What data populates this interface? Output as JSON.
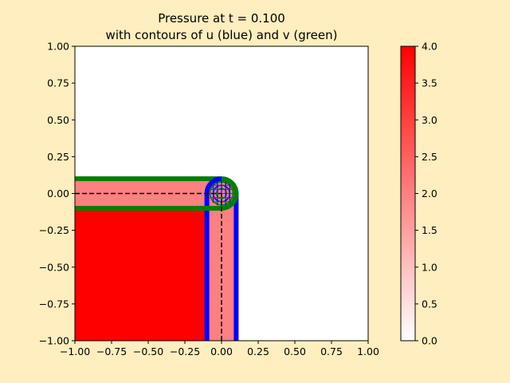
{
  "chart_data": {
    "type": "heatmap",
    "title_line1": "Pressure at t = 0.100",
    "title_line2": "with contours of u (blue) and v (green)",
    "xlabel": "",
    "ylabel": "",
    "xlim": [
      -1.0,
      1.0
    ],
    "ylim": [
      -1.0,
      1.0
    ],
    "x_ticks": [
      -1.0,
      -0.75,
      -0.5,
      -0.25,
      0.0,
      0.25,
      0.5,
      0.75,
      1.0
    ],
    "x_tick_labels": [
      "−1.00",
      "−0.75",
      "−0.50",
      "−0.25",
      "0.00",
      "0.25",
      "0.50",
      "0.75",
      "1.00"
    ],
    "y_ticks": [
      1.0,
      0.75,
      0.5,
      0.25,
      0.0,
      -0.25,
      -0.5,
      -0.75,
      -1.0
    ],
    "y_tick_labels": [
      "1.00",
      "0.75",
      "0.50",
      "0.25",
      "0.00",
      "−0.25",
      "−0.50",
      "−0.75",
      "−1.00"
    ],
    "colorbar": {
      "range": [
        0.0,
        4.0
      ],
      "ticks": [
        4.0,
        3.5,
        3.0,
        2.5,
        2.0,
        1.5,
        1.0,
        0.5,
        0.0
      ],
      "tick_labels": [
        "4.0",
        "3.5",
        "3.0",
        "2.5",
        "2.0",
        "1.5",
        "1.0",
        "0.5",
        "0.0"
      ],
      "colors": {
        "low": "#ffffff",
        "high": "#ff0000"
      }
    },
    "pressure_regions": [
      {
        "name": "quadrant",
        "x": [
          -1.0,
          -0.1
        ],
        "y": [
          -1.0,
          -0.1
        ],
        "value": 4.0
      },
      {
        "name": "horizontal-band",
        "x": [
          -1.0,
          0.0
        ],
        "y": [
          -0.1,
          0.1
        ],
        "value": 2.0
      },
      {
        "name": "vertical-band",
        "x": [
          -0.1,
          0.1
        ],
        "y": [
          -1.0,
          0.0
        ],
        "value": 2.0
      },
      {
        "name": "corner-disc",
        "center": [
          0.0,
          0.0
        ],
        "radius": 0.1,
        "value": 2.0
      }
    ],
    "u_contours": {
      "color": "#0000ff",
      "x_positions": [
        -0.1,
        0.1
      ],
      "y_range": [
        -1.0,
        0.0
      ]
    },
    "v_contours": {
      "color": "#007f00",
      "y_positions": [
        -0.1,
        0.1
      ],
      "x_range": [
        -1.0,
        0.0
      ]
    },
    "reference_lines": {
      "style": "dashed",
      "color": "#000000",
      "y0_x_range": [
        -1.0,
        0.0
      ],
      "x0_y_range": [
        -1.0,
        0.0
      ]
    }
  }
}
